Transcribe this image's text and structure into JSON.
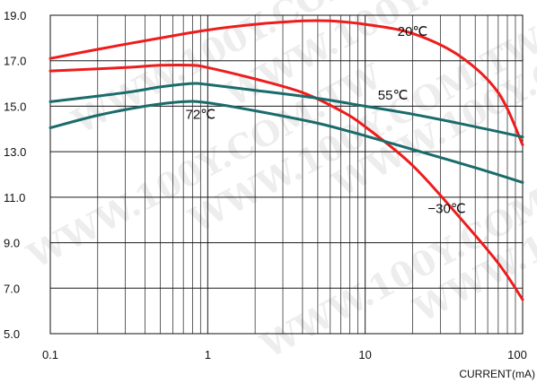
{
  "chart_data": {
    "type": "line",
    "xscale": "log",
    "xlim": [
      0.1,
      100
    ],
    "ylim": [
      5.0,
      19.0
    ],
    "xticks": [
      0.1,
      1,
      10,
      100
    ],
    "xtick_labels": [
      "0.1",
      "1",
      "10",
      "100"
    ],
    "yticks": [
      5.0,
      7.0,
      9.0,
      11.0,
      13.0,
      15.0,
      17.0,
      19.0
    ],
    "ytick_labels": [
      "5.0",
      "7.0",
      "9.0",
      "11.0",
      "13.0",
      "15.0",
      "17.0",
      "19.0"
    ],
    "xlabel": "CURRENT(mA)",
    "ylabel": "",
    "title": "",
    "grid": true,
    "watermark": "WWW.100Y.COM.TW",
    "series": [
      {
        "name": "20℃",
        "color": "#ee1c1c",
        "x": [
          0.1,
          0.2,
          0.5,
          1,
          2,
          4,
          6,
          10,
          20,
          40,
          70,
          100
        ],
        "y": [
          17.1,
          17.5,
          18.0,
          18.35,
          18.6,
          18.75,
          18.75,
          18.6,
          18.2,
          17.2,
          15.6,
          13.3
        ]
      },
      {
        "name": "−30℃",
        "color": "#ee1c1c",
        "x": [
          0.1,
          0.3,
          0.5,
          0.8,
          1,
          2,
          4,
          7,
          10,
          20,
          40,
          70,
          100
        ],
        "y": [
          16.55,
          16.7,
          16.8,
          16.8,
          16.7,
          16.2,
          15.6,
          14.8,
          14.1,
          12.4,
          10.1,
          8.1,
          6.5
        ]
      },
      {
        "name": "55℃",
        "color": "#1a6b6b",
        "x": [
          0.1,
          0.3,
          0.5,
          0.8,
          1,
          2,
          5,
          10,
          20,
          50,
          100
        ],
        "y": [
          15.2,
          15.6,
          15.85,
          16.0,
          15.95,
          15.7,
          15.35,
          15.0,
          14.65,
          14.1,
          13.65
        ]
      },
      {
        "name": "72℃",
        "color": "#1a6b6b",
        "x": [
          0.1,
          0.2,
          0.4,
          0.7,
          1,
          2,
          5,
          10,
          20,
          50,
          100
        ],
        "y": [
          14.05,
          14.6,
          15.0,
          15.2,
          15.15,
          14.8,
          14.25,
          13.7,
          13.1,
          12.3,
          11.65
        ]
      }
    ]
  }
}
